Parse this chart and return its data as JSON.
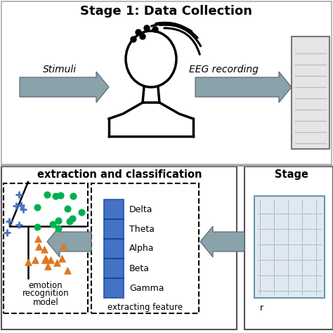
{
  "title_top": "Stage 1: Data Collection",
  "title_bottom_left": "extraction and classification",
  "title_bottom_right": "Stage",
  "label_stimuli": "Stimuli",
  "label_eeg": "EEG recording",
  "label_emotion1": "emotion",
  "label_emotion2": "recognition",
  "label_emotion3": "model",
  "label_extracting": "extracting feature",
  "freq_bands": [
    "Delta",
    "Theta",
    "Alpha",
    "Beta",
    "Gamma"
  ],
  "arrow_color": "#7a9aaa",
  "blue_bar_color": "#4472c4",
  "green_dot_color": "#00b050",
  "orange_tri_color": "#e07820",
  "blue_plus_color": "#4472c4",
  "bg_color": "#ffffff",
  "sep_line_color": "#888888",
  "box_edge_color": "#555555",
  "eeg_box_fill": "#e0e8f0"
}
